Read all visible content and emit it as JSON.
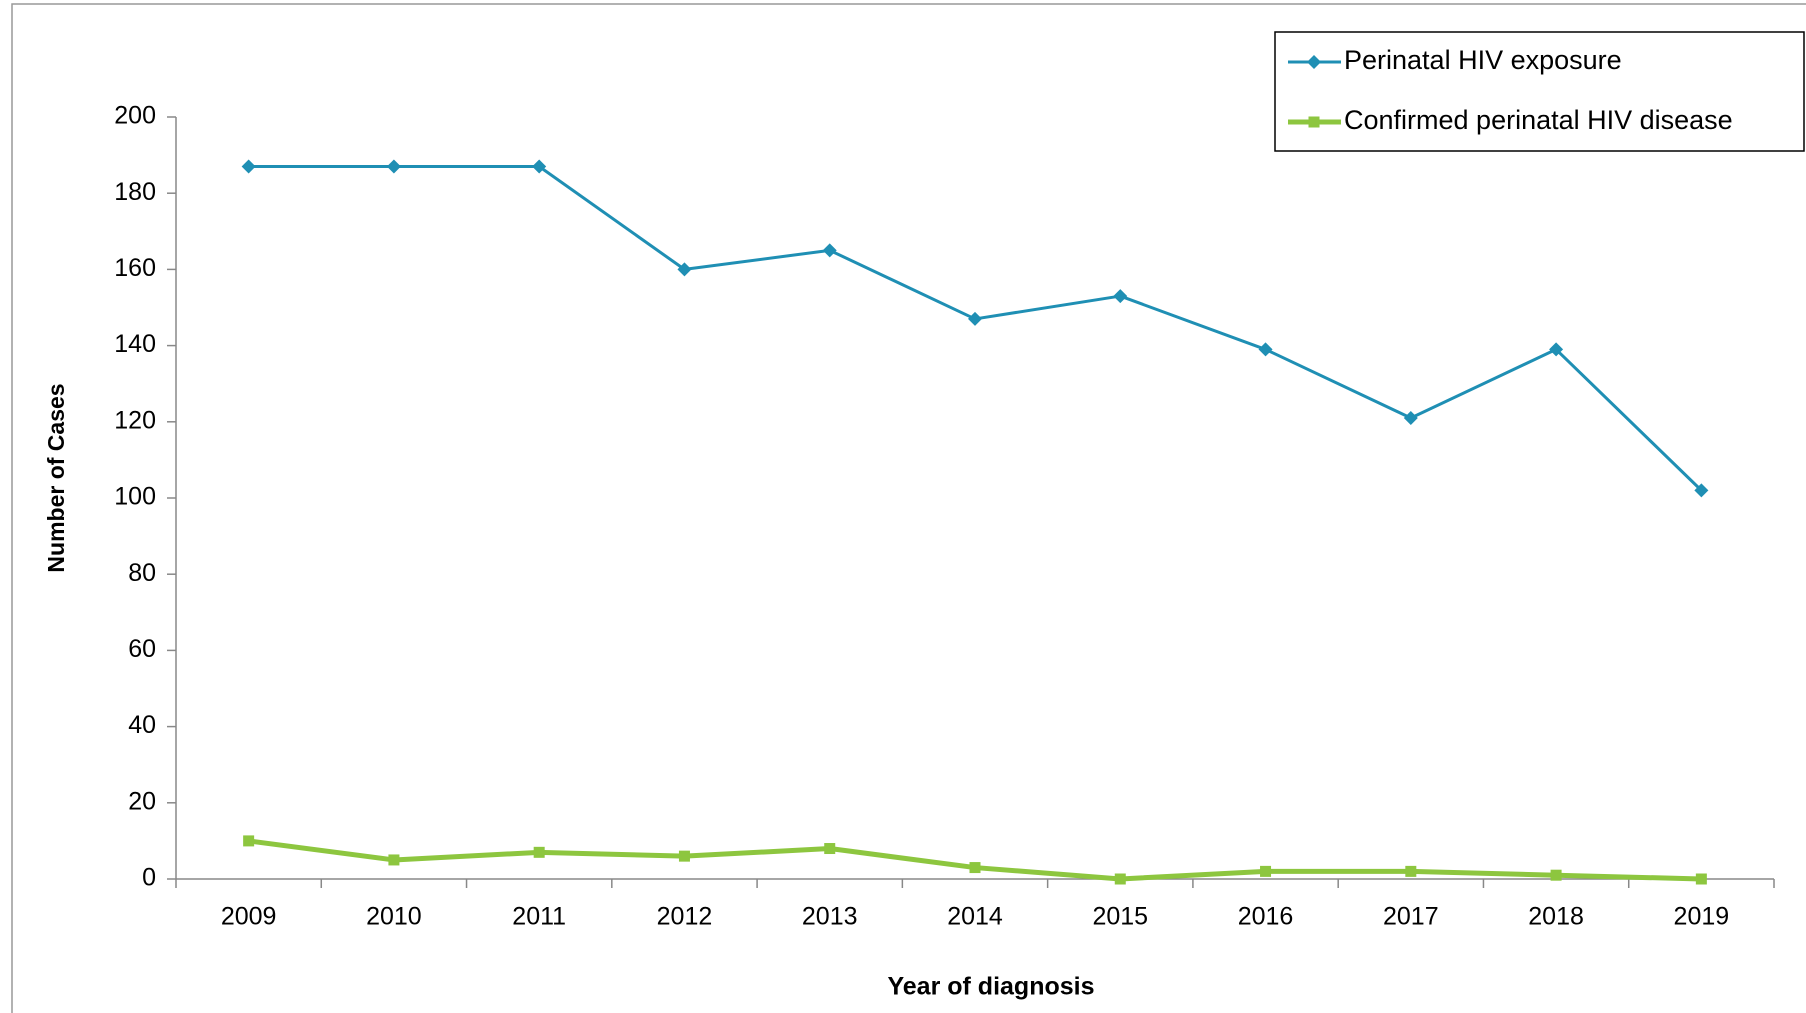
{
  "chart_data": {
    "type": "line",
    "x_label": "Year of diagnosis",
    "y_label": "Number of Cases",
    "categories": [
      "2009",
      "2010",
      "2011",
      "2012",
      "2013",
      "2014",
      "2015",
      "2016",
      "2017",
      "2018",
      "2019"
    ],
    "series": [
      {
        "name": "Perinatal HIV exposure",
        "color": "#1f8fb4",
        "marker": "diamond",
        "values": [
          187,
          187,
          187,
          160,
          165,
          147,
          153,
          139,
          121,
          139,
          102
        ]
      },
      {
        "name": "Confirmed perinatal HIV disease",
        "color": "#8dc63f",
        "marker": "square",
        "values": [
          10,
          5,
          7,
          6,
          8,
          3,
          0,
          2,
          2,
          1,
          0
        ]
      }
    ],
    "ylim": [
      0,
      200
    ],
    "yticks": [
      0,
      20,
      40,
      60,
      80,
      100,
      120,
      140,
      160,
      180,
      200
    ],
    "grid": false,
    "legend": "upper right"
  }
}
